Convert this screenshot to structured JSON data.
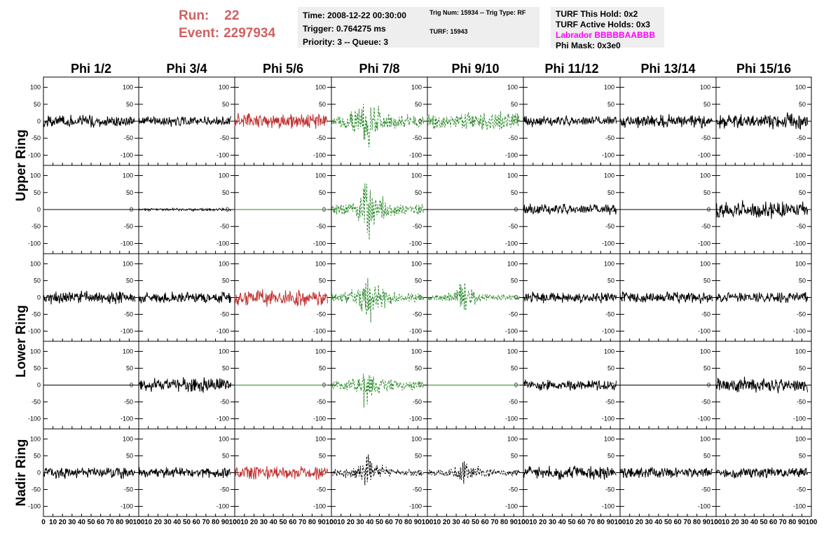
{
  "run_info": {
    "run_label": "Run:",
    "run": "22",
    "event_label": "Event:",
    "event": "2297934"
  },
  "trigger_box": {
    "time": "Time: 2008-12-22 00:30:00",
    "trigger": "Trigger: 0.764275 ms",
    "priority": "Priority: 3 -- Queue: 3"
  },
  "trig_box": {
    "trig": "Trig Num: 15934 -- Trig Type: RF",
    "turf": "TURF: 15943"
  },
  "turf_box": {
    "this_hold": "TURF This Hold: 0x2",
    "active_holds": "TURF Active Holds: 0x3",
    "labrador": "Labrador BBBBBAABBB",
    "phi_mask": "Phi Mask: 0x3e0"
  },
  "colors": {
    "run_text": "#d06060",
    "labrador": "#ff00ff",
    "normal_trace": "#000000",
    "triggered_trace": "#c03030",
    "masked_trace": "#2a8a2a"
  },
  "chart_data": {
    "type": "line",
    "columns": [
      "Phi 1/2",
      "Phi 3/4",
      "Phi 5/6",
      "Phi 7/8",
      "Phi 9/10",
      "Phi 11/12",
      "Phi 13/14",
      "Phi 15/16"
    ],
    "rows": [
      "Upper Ring",
      "Upper Ring",
      "Lower Ring",
      "Lower Ring",
      "Nadir Ring"
    ],
    "ring_labels": [
      "Upper Ring",
      "Lower Ring",
      "Nadir Ring"
    ],
    "xlim": [
      0,
      100
    ],
    "ylim": [
      -130,
      130
    ],
    "x_ticks": [
      "0",
      "10",
      "20",
      "30",
      "40",
      "50",
      "60",
      "70",
      "80",
      "90",
      "100"
    ],
    "y_ticks": [
      {
        "value": 100,
        "label": "100"
      },
      {
        "value": 50,
        "label": "50"
      },
      {
        "value": 0,
        "label": "0"
      },
      {
        "value": -50,
        "label": "-50"
      },
      {
        "value": -100,
        "label": "-100"
      }
    ],
    "trace_x_range": [
      0,
      96
    ],
    "panels": [
      [
        {
          "style": "black",
          "amp": 14,
          "env": "flat",
          "seed": 1
        },
        {
          "style": "black",
          "amp": 11,
          "env": "flat",
          "seed": 2
        },
        {
          "style": "red",
          "amp": 18,
          "env": "flat",
          "seed": 3
        },
        {
          "style": "green_dash",
          "amp": 40,
          "env": "pulse",
          "seed": 4
        },
        {
          "style": "green_dash",
          "amp": 20,
          "env": "flat",
          "seed": 5
        },
        {
          "style": "black",
          "amp": 12,
          "env": "flat",
          "seed": 6
        },
        {
          "style": "black",
          "amp": 15,
          "env": "flat",
          "seed": 7
        },
        {
          "style": "black",
          "amp": 18,
          "env": "flat",
          "seed": 8
        }
      ],
      [
        {
          "style": "flat_black",
          "amp": 0,
          "env": "flat",
          "seed": 9
        },
        {
          "style": "black",
          "amp": 3,
          "env": "flat",
          "seed": 10
        },
        {
          "style": "flat_green",
          "amp": 0,
          "env": "flat",
          "seed": 11
        },
        {
          "style": "green_dash",
          "amp": 38,
          "env": "pulse",
          "seed": 12
        },
        {
          "style": "flat_black",
          "amp": 0,
          "env": "flat",
          "seed": 13
        },
        {
          "style": "black",
          "amp": 12,
          "env": "flat",
          "seed": 14
        },
        {
          "style": "flat_black",
          "amp": 0,
          "env": "flat",
          "seed": 15
        },
        {
          "style": "black",
          "amp": 20,
          "env": "flat",
          "seed": 16
        }
      ],
      [
        {
          "style": "black",
          "amp": 15,
          "env": "flat",
          "seed": 17
        },
        {
          "style": "black",
          "amp": 13,
          "env": "flat",
          "seed": 18
        },
        {
          "style": "red",
          "amp": 20,
          "env": "flat",
          "seed": 19
        },
        {
          "style": "green_dash",
          "amp": 34,
          "env": "pulse",
          "seed": 20
        },
        {
          "style": "green_dash",
          "amp": 20,
          "env": "pulse",
          "seed": 21
        },
        {
          "style": "black",
          "amp": 13,
          "env": "flat",
          "seed": 22
        },
        {
          "style": "black",
          "amp": 14,
          "env": "flat",
          "seed": 23
        },
        {
          "style": "black",
          "amp": 12,
          "env": "flat",
          "seed": 24
        }
      ],
      [
        {
          "style": "flat_black",
          "amp": 0,
          "env": "flat",
          "seed": 25
        },
        {
          "style": "black",
          "amp": 16,
          "env": "flat",
          "seed": 26
        },
        {
          "style": "flat_green",
          "amp": 0,
          "env": "flat",
          "seed": 27
        },
        {
          "style": "green_dash",
          "amp": 30,
          "env": "pulse",
          "seed": 28
        },
        {
          "style": "flat_green",
          "amp": 0,
          "env": "flat",
          "seed": 29
        },
        {
          "style": "black",
          "amp": 12,
          "env": "flat",
          "seed": 30
        },
        {
          "style": "flat_black",
          "amp": 0,
          "env": "flat",
          "seed": 31
        },
        {
          "style": "black",
          "amp": 17,
          "env": "flat",
          "seed": 32
        }
      ],
      [
        {
          "style": "black",
          "amp": 13,
          "env": "flat",
          "seed": 33
        },
        {
          "style": "black",
          "amp": 12,
          "env": "flat",
          "seed": 34
        },
        {
          "style": "red",
          "amp": 16,
          "env": "flat",
          "seed": 35
        },
        {
          "style": "black_dash",
          "amp": 24,
          "env": "pulse",
          "seed": 36
        },
        {
          "style": "black_dash",
          "amp": 20,
          "env": "pulse",
          "seed": 37
        },
        {
          "style": "black",
          "amp": 15,
          "env": "flat",
          "seed": 38
        },
        {
          "style": "black",
          "amp": 12,
          "env": "flat",
          "seed": 39
        },
        {
          "style": "black",
          "amp": 12,
          "env": "flat",
          "seed": 40
        }
      ]
    ]
  }
}
